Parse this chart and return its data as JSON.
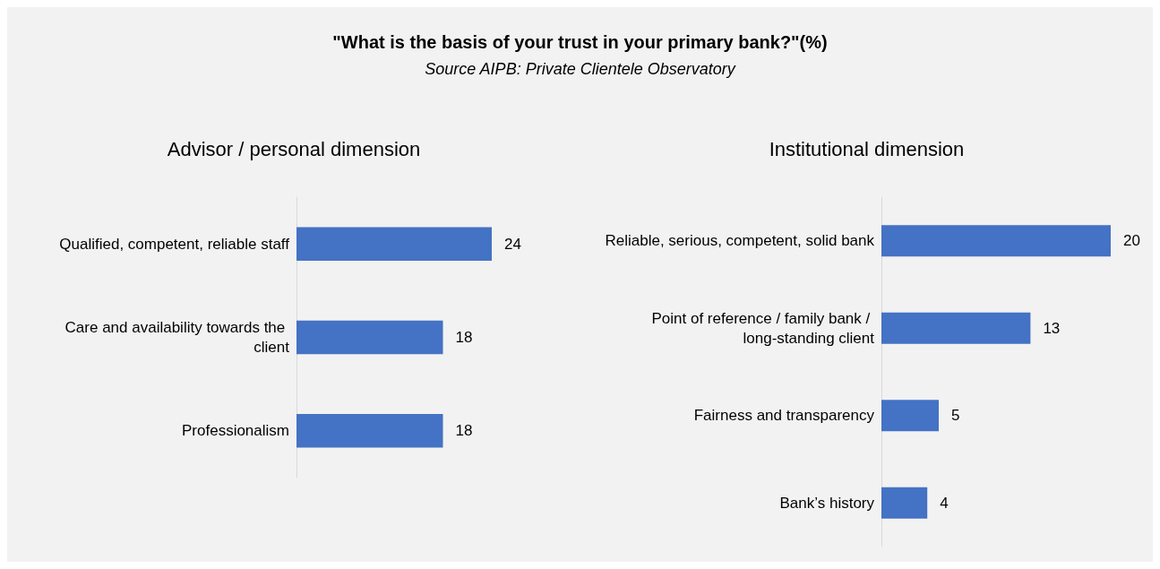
{
  "chart_data": [
    {
      "type": "other",
      "title": "\"What is the basis of your trust in your primary bank?\"(%)",
      "subtitle": "Source AIPB: Private Clientele Observatory"
    },
    {
      "type": "bar",
      "orientation": "horizontal",
      "title": "Advisor / personal dimension",
      "categories": [
        "Qualified, competent, reliable staff",
        "Care and availability towards the client",
        "Professionalism"
      ],
      "values": [
        24,
        18,
        18
      ],
      "color": "#4472c4",
      "data_labels": true
    },
    {
      "type": "bar",
      "orientation": "horizontal",
      "title": "Institutional dimension",
      "categories": [
        "Reliable, serious, competent, solid bank",
        "Point of reference / family bank / long-standing client",
        "Fairness and transparency",
        "Bank’s history"
      ],
      "values": [
        20,
        13,
        5,
        4
      ],
      "color": "#4472c4",
      "data_labels": true
    }
  ]
}
